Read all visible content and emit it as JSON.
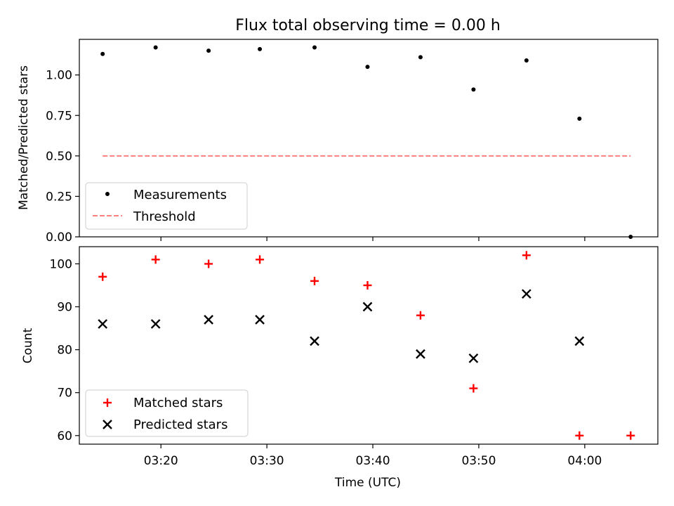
{
  "chart_data": [
    {
      "type": "scatter",
      "title": "Flux total observing time = 0.00 h",
      "xlabel": "",
      "ylabel": "Matched/Predicted stars",
      "ylim": [
        0,
        1.22
      ],
      "xlim": [
        "03:12:18",
        "04:06:54"
      ],
      "yticks": [
        "0.00",
        "0.25",
        "0.50",
        "0.75",
        "1.00"
      ],
      "ytick_values": [
        0,
        0.25,
        0.5,
        0.75,
        1.0
      ],
      "legend_position": "lower-left",
      "series": [
        {
          "name": "Measurements",
          "marker": "dot",
          "color": "#000000",
          "x": [
            "03:14:30",
            "03:19:30",
            "03:24:30",
            "03:29:20",
            "03:34:30",
            "03:39:30",
            "03:44:30",
            "03:49:30",
            "03:54:30",
            "03:59:30",
            "04:04:20"
          ],
          "y": [
            1.13,
            1.17,
            1.15,
            1.16,
            1.17,
            1.05,
            1.11,
            0.91,
            1.09,
            0.73,
            0.0
          ]
        },
        {
          "name": "Threshold",
          "marker": "dashed-line",
          "color": "#ff7f7f",
          "x": [
            "03:14:30",
            "04:04:20"
          ],
          "y": [
            0.5,
            0.5
          ]
        }
      ]
    },
    {
      "type": "scatter",
      "title": "",
      "xlabel": "Time (UTC)",
      "ylabel": "Count",
      "ylim": [
        58,
        104
      ],
      "xlim": [
        "03:12:18",
        "04:06:54"
      ],
      "xticks": [
        "03:20",
        "03:30",
        "03:40",
        "03:50",
        "04:00"
      ],
      "xtick_values": [
        "03:20:00",
        "03:30:00",
        "03:40:00",
        "03:50:00",
        "04:00:00"
      ],
      "yticks": [
        "60",
        "70",
        "80",
        "90",
        "100"
      ],
      "ytick_values": [
        60,
        70,
        80,
        90,
        100
      ],
      "legend_position": "lower-left",
      "series": [
        {
          "name": "Matched stars",
          "marker": "plus",
          "color": "#ff0000",
          "x": [
            "03:14:30",
            "03:19:30",
            "03:24:30",
            "03:29:20",
            "03:34:30",
            "03:39:30",
            "03:44:30",
            "03:49:30",
            "03:54:30",
            "03:59:30",
            "04:04:20"
          ],
          "y": [
            97,
            101,
            100,
            101,
            96,
            95,
            88,
            71,
            102,
            60,
            60
          ]
        },
        {
          "name": "Predicted stars",
          "marker": "x",
          "color": "#000000",
          "x": [
            "03:14:30",
            "03:19:30",
            "03:24:30",
            "03:29:20",
            "03:34:30",
            "03:39:30",
            "03:44:30",
            "03:49:30",
            "03:54:30",
            "03:59:30"
          ],
          "y": [
            86,
            86,
            87,
            87,
            82,
            90,
            79,
            78,
            93,
            82
          ]
        }
      ]
    }
  ]
}
